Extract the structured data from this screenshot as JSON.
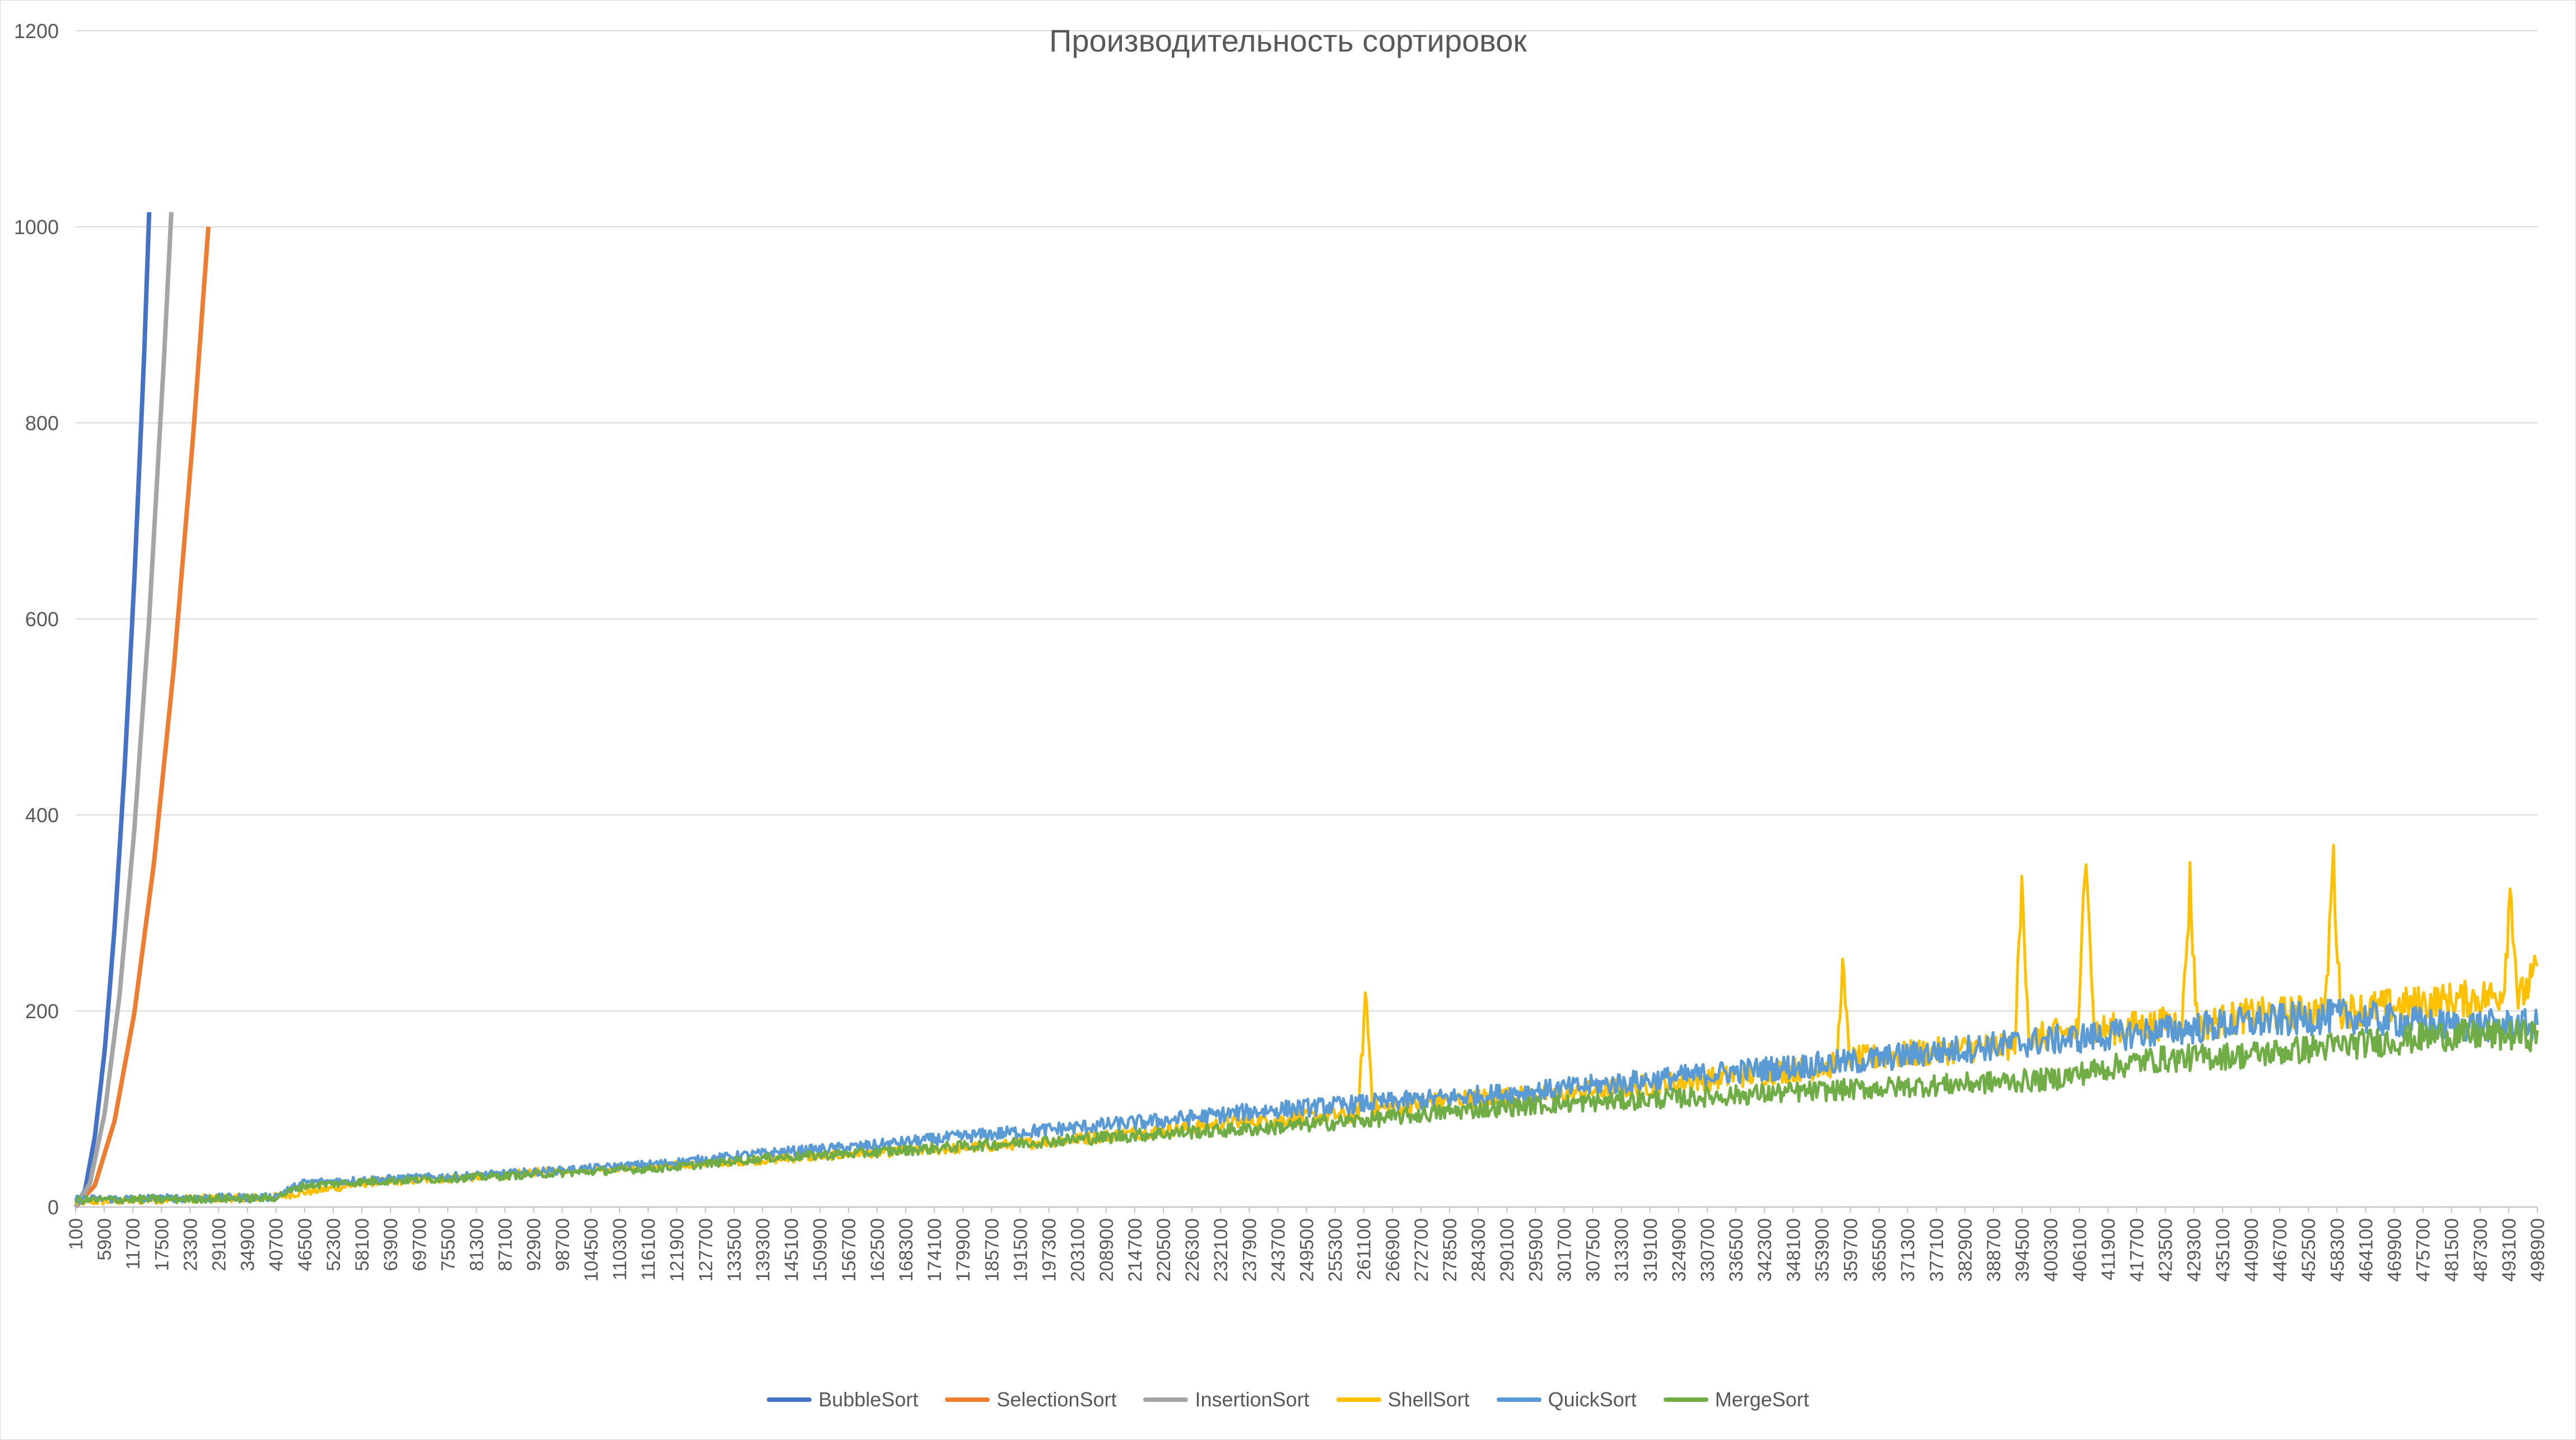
{
  "chart_data": {
    "type": "line",
    "title": "Производительность сортировок",
    "xlabel": "",
    "ylabel": "",
    "ylim": [
      0,
      1200
    ],
    "yticks": [
      0,
      200,
      400,
      600,
      800,
      1000,
      1200
    ],
    "xlim": [
      100,
      498900
    ],
    "xtick_labels": [
      "100",
      "5900",
      "11700",
      "17500",
      "23300",
      "29100",
      "34900",
      "40700",
      "46500",
      "52300",
      "58100",
      "63900",
      "69700",
      "75500",
      "81300",
      "87100",
      "92900",
      "98700",
      "104500",
      "110300",
      "116100",
      "121900",
      "127700",
      "133500",
      "139300",
      "145100",
      "150900",
      "156700",
      "162500",
      "168300",
      "174100",
      "179900",
      "185700",
      "191500",
      "197300",
      "203100",
      "208900",
      "214700",
      "220500",
      "226300",
      "232100",
      "237900",
      "243700",
      "249500",
      "255300",
      "261100",
      "266900",
      "272700",
      "278500",
      "284300",
      "290100",
      "295900",
      "301700",
      "307500",
      "313300",
      "319100",
      "324900",
      "330700",
      "336500",
      "342300",
      "348100",
      "353900",
      "359700",
      "365500",
      "371300",
      "377100",
      "382900",
      "388700",
      "394500",
      "400300",
      "406100",
      "411900",
      "417700",
      "423500",
      "429300",
      "435100",
      "440900",
      "446700",
      "452500",
      "458300",
      "464100",
      "469900",
      "475700",
      "481500",
      "487300",
      "493100",
      "498900"
    ],
    "grid": "horizontal",
    "legend_position": "bottom",
    "series": [
      {
        "name": "BubbleSort",
        "color": "#4472c4",
        "x": [
          100,
          2000,
          4000,
          6000,
          8000,
          10000,
          12000,
          14000,
          15000
        ],
        "y": [
          0,
          17,
          72,
          160,
          285,
          445,
          640,
          870,
          1015
        ]
      },
      {
        "name": "SelectionSort",
        "color": "#ed7d31",
        "x": [
          100,
          4000,
          8000,
          12000,
          16000,
          20000,
          24000,
          27000
        ],
        "y": [
          0,
          22,
          88,
          198,
          352,
          550,
          792,
          1000
        ]
      },
      {
        "name": "InsertionSort",
        "color": "#a5a5a5",
        "x": [
          100,
          3000,
          6000,
          9000,
          12000,
          15000,
          18000,
          19500
        ],
        "y": [
          0,
          24,
          96,
          216,
          385,
          600,
          865,
          1015
        ]
      },
      {
        "name": "ShellSort",
        "color": "#ffc000",
        "x": [
          100,
          20000,
          40000,
          46500,
          60000,
          80000,
          100000,
          120000,
          140000,
          160000,
          180000,
          200000,
          220000,
          240000,
          260000,
          261500,
          263000,
          280000,
          300000,
          320000,
          340000,
          357000,
          358000,
          359500,
          380000,
          393000,
          394500,
          396000,
          400000,
          406000,
          407500,
          409000,
          420000,
          427000,
          428500,
          430000,
          440000,
          456000,
          457500,
          459000,
          470000,
          480000,
          490000,
          492000,
          493500,
          495000,
          498900
        ],
        "y": [
          5,
          8,
          10,
          15,
          25,
          30,
          38,
          42,
          48,
          55,
          60,
          68,
          78,
          88,
          95,
          220,
          100,
          110,
          115,
          125,
          135,
          145,
          250,
          150,
          160,
          165,
          330,
          170,
          175,
          180,
          390,
          180,
          185,
          190,
          330,
          185,
          195,
          200,
          360,
          200,
          205,
          210,
          215,
          220,
          330,
          210,
          240
        ]
      },
      {
        "name": "QuickSort",
        "color": "#5b9bd5",
        "x": [
          100,
          20000,
          40000,
          46500,
          60000,
          80000,
          100000,
          120000,
          140000,
          160000,
          180000,
          200000,
          220000,
          240000,
          260000,
          280000,
          300000,
          320000,
          340000,
          360000,
          380000,
          400000,
          420000,
          440000,
          460000,
          480000,
          498900
        ],
        "y": [
          8,
          9,
          10,
          25,
          28,
          32,
          38,
          45,
          55,
          62,
          72,
          80,
          88,
          98,
          105,
          112,
          120,
          130,
          140,
          148,
          160,
          170,
          178,
          188,
          195,
          185,
          185
        ]
      },
      {
        "name": "MergeSort",
        "color": "#70ad47",
        "x": [
          100,
          20000,
          40000,
          46500,
          60000,
          80000,
          100000,
          120000,
          140000,
          160000,
          180000,
          200000,
          220000,
          240000,
          260000,
          280000,
          300000,
          320000,
          340000,
          360000,
          380000,
          400000,
          420000,
          440000,
          460000,
          480000,
          498900
        ],
        "y": [
          7,
          8,
          9,
          22,
          26,
          30,
          35,
          40,
          50,
          55,
          62,
          68,
          75,
          80,
          88,
          98,
          105,
          110,
          115,
          120,
          125,
          130,
          150,
          155,
          165,
          175,
          175
        ]
      }
    ]
  }
}
